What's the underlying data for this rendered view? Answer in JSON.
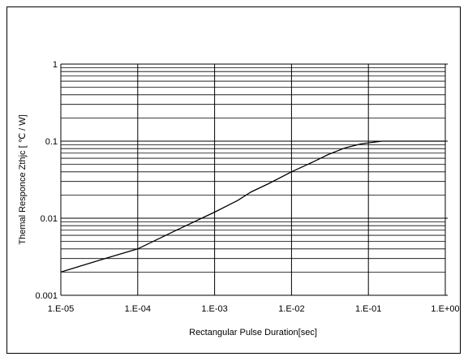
{
  "chart_data": {
    "type": "line",
    "title": "",
    "xlabel": "Rectangular Pulse Duration[sec]",
    "ylabel": "Themal Responce  Zthjc  [    ℃ / W]",
    "xscale": "log",
    "yscale": "log",
    "xlim": [
      1e-05,
      1
    ],
    "ylim": [
      0.001,
      1
    ],
    "grid": true,
    "xticks": [
      1e-05,
      0.0001,
      0.001,
      0.01,
      0.1,
      1
    ],
    "xtick_labels": [
      "1.E-05",
      "1.E-04",
      "1.E-03",
      "1.E-02",
      "1.E-01",
      "1.E+00"
    ],
    "yticks": [
      0.001,
      0.01,
      0.1,
      1
    ],
    "ytick_labels": [
      "0.001",
      "0.01",
      "0.1",
      "1"
    ],
    "series": [
      {
        "x": [
          1e-05,
          3e-05,
          0.0001,
          0.0003,
          0.001,
          0.002,
          0.003,
          0.005,
          0.01,
          0.02,
          0.03,
          0.05,
          0.08,
          0.1,
          0.15,
          0.2,
          0.5,
          1
        ],
        "y": [
          0.002,
          0.0028,
          0.004,
          0.0068,
          0.012,
          0.017,
          0.022,
          0.028,
          0.04,
          0.055,
          0.067,
          0.082,
          0.092,
          0.095,
          0.1,
          0.1,
          0.1,
          0.1
        ]
      }
    ]
  }
}
